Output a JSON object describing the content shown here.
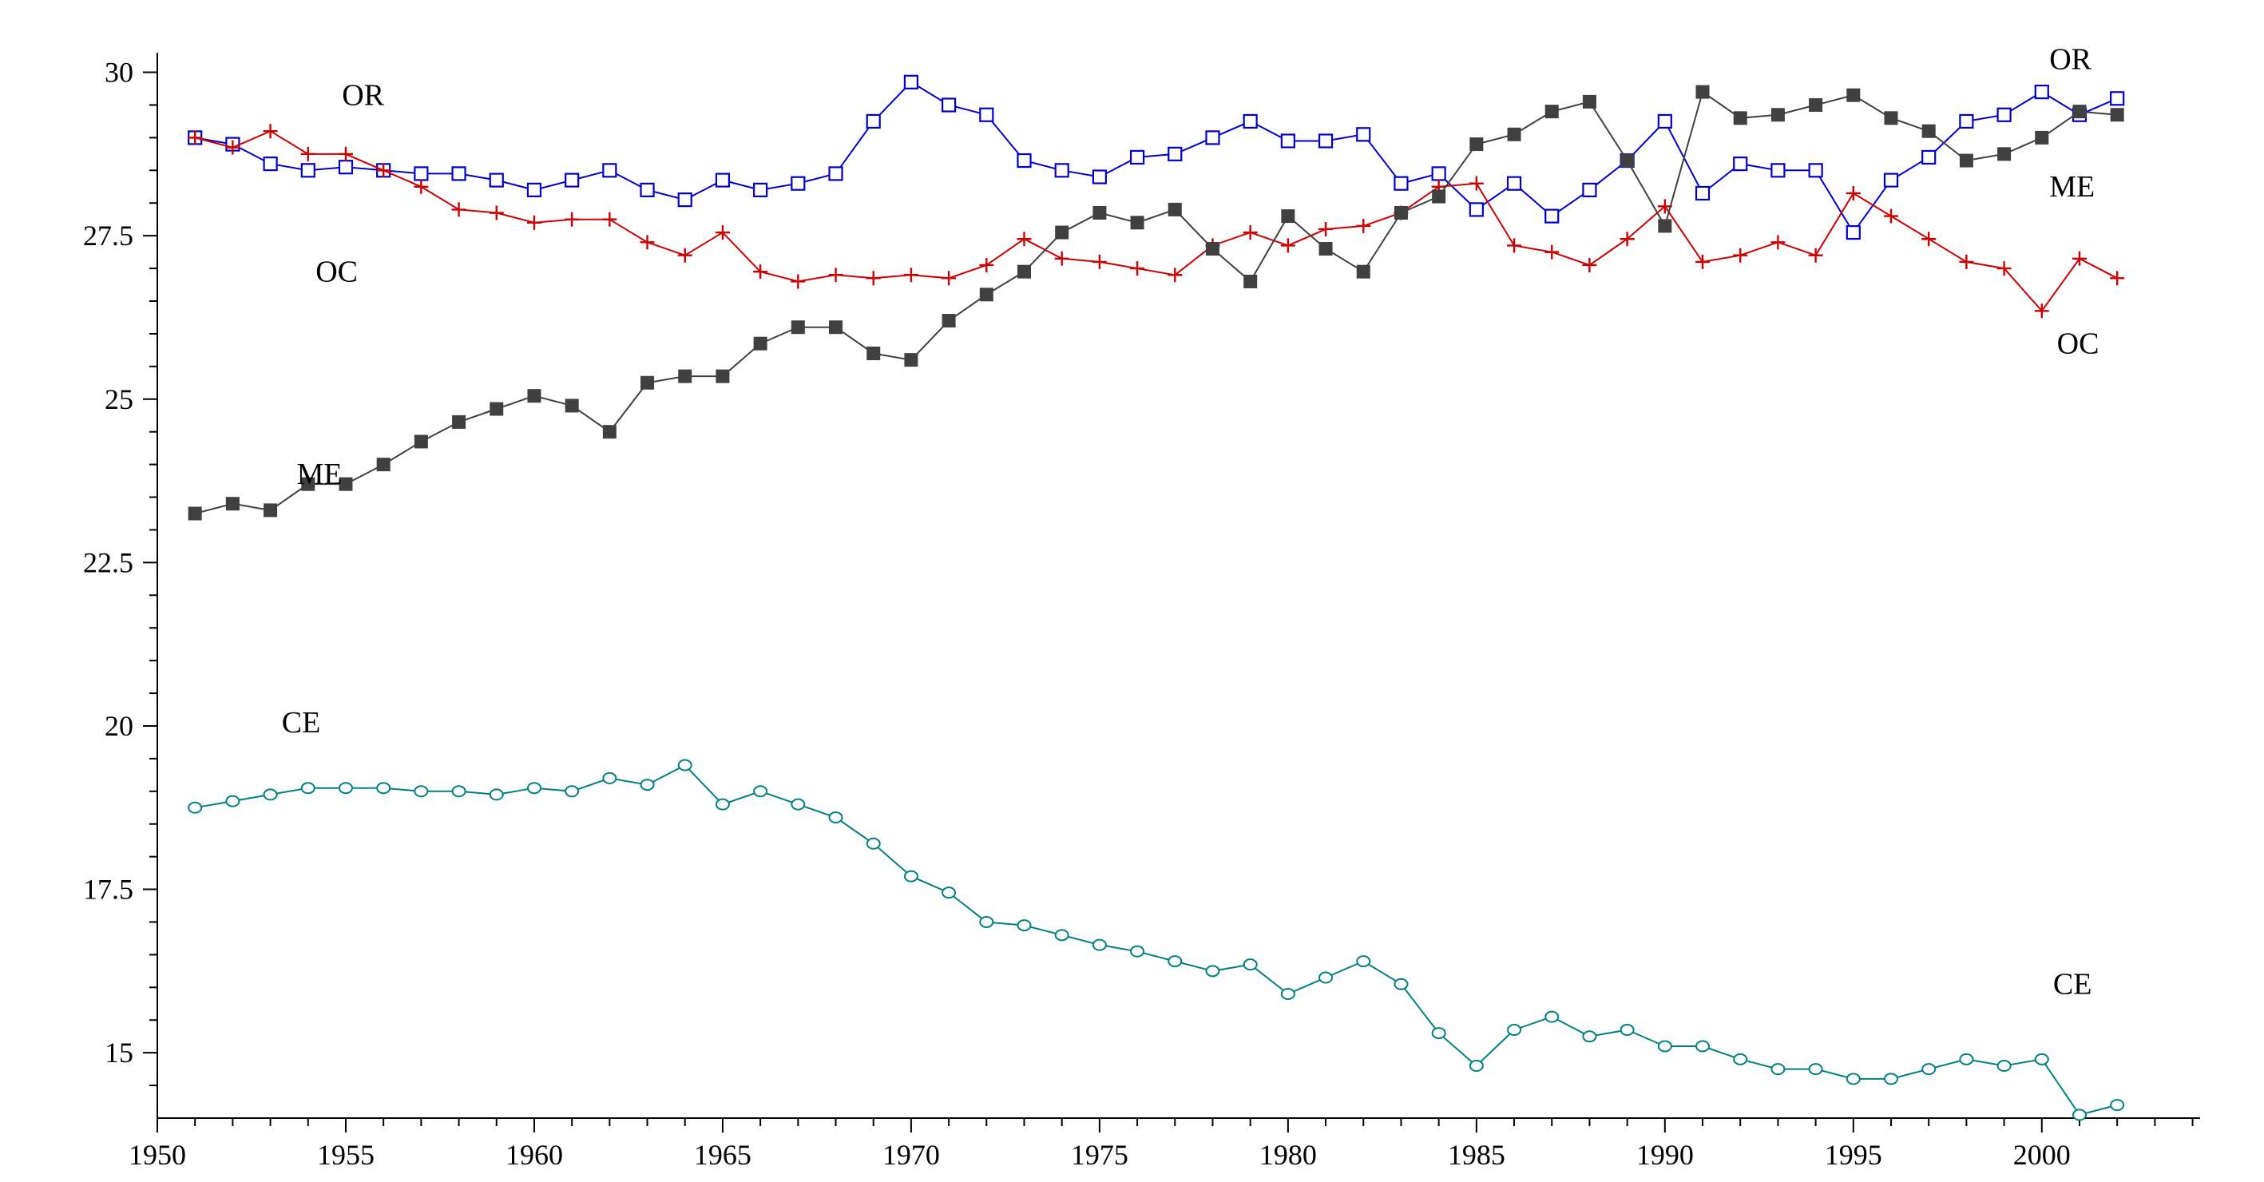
{
  "chart_data": {
    "type": "line",
    "title": "",
    "xlabel": "",
    "ylabel": "",
    "xlim": [
      1950,
      2004.2
    ],
    "ylim": [
      14,
      30.3
    ],
    "x_ticks": [
      1950,
      1955,
      1960,
      1965,
      1970,
      1975,
      1980,
      1985,
      1990,
      1995,
      2000
    ],
    "y_ticks": [
      15,
      17.5,
      20,
      22.5,
      25,
      27.5,
      30
    ],
    "y_tick_labels": [
      "15",
      "17.5",
      "20",
      "22.5",
      "25",
      "27.5",
      "30"
    ],
    "grid": false,
    "legend": "none",
    "x": [
      1951,
      1952,
      1953,
      1954,
      1955,
      1956,
      1957,
      1958,
      1959,
      1960,
      1961,
      1962,
      1963,
      1964,
      1965,
      1966,
      1967,
      1968,
      1969,
      1970,
      1971,
      1972,
      1973,
      1974,
      1975,
      1976,
      1977,
      1978,
      1979,
      1980,
      1981,
      1982,
      1983,
      1984,
      1985,
      1986,
      1987,
      1988,
      1989,
      1990,
      1991,
      1992,
      1993,
      1994,
      1995,
      1996,
      1997,
      1998,
      1999,
      2000,
      2001,
      2002
    ],
    "series": [
      {
        "key": "OR",
        "color": "#0000cc",
        "marker": "open-square",
        "values": [
          29.0,
          28.9,
          28.6,
          28.5,
          28.55,
          28.5,
          28.45,
          28.45,
          28.35,
          28.2,
          28.35,
          28.5,
          28.2,
          28.05,
          28.35,
          28.2,
          28.3,
          28.45,
          29.25,
          29.85,
          29.5,
          29.35,
          28.65,
          28.5,
          28.4,
          28.7,
          28.75,
          29.0,
          29.25,
          28.95,
          28.95,
          29.05,
          28.3,
          28.45,
          27.9,
          28.3,
          27.8,
          28.2,
          28.65,
          29.25,
          28.15,
          28.6,
          28.5,
          28.5,
          27.55,
          28.35,
          28.7,
          29.25,
          29.35,
          29.7,
          29.35,
          29.6
        ]
      },
      {
        "key": "OC",
        "color": "#cc0000",
        "marker": "plus",
        "values": [
          29.0,
          28.85,
          29.1,
          28.75,
          28.75,
          28.5,
          28.25,
          27.9,
          27.85,
          27.7,
          27.75,
          27.75,
          27.4,
          27.2,
          27.55,
          26.95,
          26.8,
          26.9,
          26.85,
          26.9,
          26.85,
          27.05,
          27.45,
          27.15,
          27.1,
          27.0,
          26.9,
          27.35,
          27.55,
          27.35,
          27.6,
          27.65,
          27.85,
          28.25,
          28.3,
          27.35,
          27.25,
          27.05,
          27.45,
          27.95,
          27.1,
          27.2,
          27.4,
          27.2,
          28.15,
          27.8,
          27.45,
          27.1,
          27.0,
          26.35,
          27.15,
          26.85
        ]
      },
      {
        "key": "ME",
        "color": "#404040",
        "marker": "filled-square",
        "values": [
          23.25,
          23.4,
          23.3,
          23.7,
          23.7,
          24.0,
          24.35,
          24.65,
          24.85,
          25.05,
          24.9,
          24.5,
          25.25,
          25.35,
          25.35,
          25.85,
          26.1,
          26.1,
          25.7,
          25.6,
          26.2,
          26.6,
          26.95,
          27.55,
          27.85,
          27.7,
          27.9,
          27.3,
          26.8,
          27.8,
          27.3,
          26.95,
          27.85,
          28.1,
          28.9,
          29.05,
          29.4,
          29.55,
          28.65,
          27.65,
          29.7,
          29.3,
          29.35,
          29.5,
          29.65,
          29.3,
          29.1,
          28.65,
          28.75,
          29.0,
          29.4,
          29.35
        ]
      },
      {
        "key": "CE",
        "color": "#008080",
        "marker": "open-circle",
        "values": [
          18.75,
          18.85,
          18.95,
          19.05,
          19.05,
          19.05,
          19.0,
          19.0,
          18.95,
          19.05,
          19.0,
          19.2,
          19.1,
          19.4,
          18.8,
          19.0,
          18.8,
          18.6,
          18.2,
          17.7,
          17.45,
          17.0,
          16.95,
          16.8,
          16.65,
          16.55,
          16.4,
          16.25,
          16.35,
          15.9,
          16.15,
          16.4,
          16.05,
          15.3,
          14.8,
          15.35,
          15.55,
          15.25,
          15.35,
          15.1,
          15.1,
          14.9,
          14.75,
          14.75,
          14.6,
          14.6,
          14.75,
          14.9,
          14.8,
          14.9,
          14.05,
          14.2
        ]
      }
    ],
    "annotations": [
      {
        "text": "OR",
        "x": 1954.9,
        "y": 29.5
      },
      {
        "text": "OR",
        "x": 2000.2,
        "y": 30.05
      },
      {
        "text": "OC",
        "x": 1954.2,
        "y": 26.8
      },
      {
        "text": "OC",
        "x": 2000.4,
        "y": 25.7
      },
      {
        "text": "ME",
        "x": 1953.7,
        "y": 23.7
      },
      {
        "text": "ME",
        "x": 2000.2,
        "y": 28.1
      },
      {
        "text": "CE",
        "x": 1953.3,
        "y": 19.9
      },
      {
        "text": "CE",
        "x": 2000.3,
        "y": 15.9
      }
    ]
  }
}
